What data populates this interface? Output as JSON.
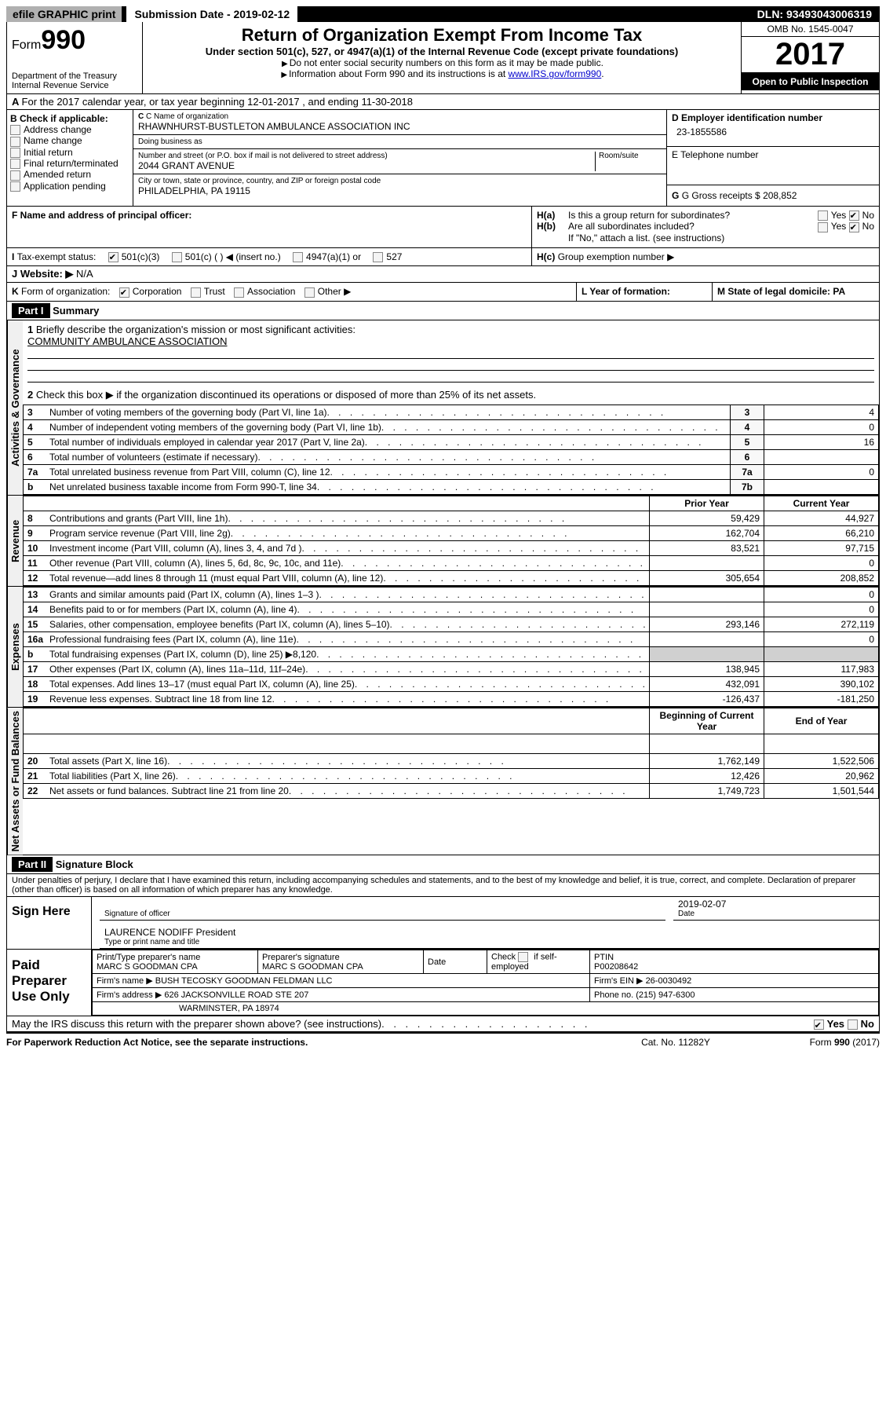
{
  "topbar": {
    "efile": "efile GRAPHIC print",
    "submission_label": "Submission Date - 2019-02-12",
    "dln": "DLN: 93493043006319"
  },
  "header": {
    "form_prefix": "Form",
    "form_no": "990",
    "dept": "Department of the Treasury",
    "irs": "Internal Revenue Service",
    "title": "Return of Organization Exempt From Income Tax",
    "sub": "Under section 501(c), 527, or 4947(a)(1) of the Internal Revenue Code (except private foundations)",
    "note1": "Do not enter social security numbers on this form as it may be made public.",
    "note2_pre": "Information about Form 990 and its instructions is at ",
    "note2_link": "www.IRS.gov/form990",
    "omb": "OMB No. 1545-0047",
    "year": "2017",
    "open": "Open to Public Inspection"
  },
  "section_a": "For the 2017 calendar year, or tax year beginning 12-01-2017   , and ending 11-30-2018",
  "col_b": {
    "header": "B Check if applicable:",
    "items": [
      "Address change",
      "Name change",
      "Initial return",
      "Final return/terminated",
      "Amended return",
      "Application pending"
    ]
  },
  "col_c": {
    "name_label": "C Name of organization",
    "name": "RHAWNHURST-BUSTLETON AMBULANCE ASSOCIATION INC",
    "dba_label": "Doing business as",
    "dba": "",
    "street_label": "Number and street (or P.O. box if mail is not delivered to street address)",
    "room_label": "Room/suite",
    "street": "2044 GRANT AVENUE",
    "city_label": "City or town, state or province, country, and ZIP or foreign postal code",
    "city": "PHILADELPHIA, PA  19115"
  },
  "col_d": {
    "ein_label": "D Employer identification number",
    "ein": "23-1855586",
    "phone_label": "E Telephone number",
    "phone": "",
    "gross_label": "G Gross receipts $ ",
    "gross": "208,852"
  },
  "f_label": "F  Name and address of principal officer:",
  "h": {
    "ha": "Is this a group return for subordinates?",
    "hb": "Are all subordinates included?",
    "hb_note": "If \"No,\" attach a list. (see instructions)",
    "hc": "Group exemption number ▶",
    "yes": "Yes",
    "no": "No"
  },
  "tax_exempt": {
    "label": "Tax-exempt status:",
    "opt1": "501(c)(3)",
    "opt2": "501(c) (   ) ◀ (insert no.)",
    "opt3": "4947(a)(1) or",
    "opt4": "527"
  },
  "website": {
    "label": "Website: ▶",
    "value": "N/A"
  },
  "k_form": {
    "label": "Form of organization:",
    "opts": [
      "Corporation",
      "Trust",
      "Association",
      "Other ▶"
    ]
  },
  "l_year": "L Year of formation:",
  "m_state": "M State of legal domicile: PA",
  "parts": {
    "p1": "Part I",
    "p1_title": "Summary",
    "p2": "Part II",
    "p2_title": "Signature Block"
  },
  "tabs": {
    "gov": "Activities & Governance",
    "rev": "Revenue",
    "exp": "Expenses",
    "net": "Net Assets or Fund Balances"
  },
  "p1": {
    "l1": "Briefly describe the organization's mission or most significant activities:",
    "l1_val": "COMMUNITY AMBULANCE ASSOCIATION",
    "l2": "Check this box ▶       if the organization discontinued its operations or disposed of more than 25% of its net assets.",
    "lines": [
      {
        "n": "3",
        "t": "Number of voting members of the governing body (Part VI, line 1a)",
        "k": "3",
        "v": "4"
      },
      {
        "n": "4",
        "t": "Number of independent voting members of the governing body (Part VI, line 1b)",
        "k": "4",
        "v": "0"
      },
      {
        "n": "5",
        "t": "Total number of individuals employed in calendar year 2017 (Part V, line 2a)",
        "k": "5",
        "v": "16"
      },
      {
        "n": "6",
        "t": "Total number of volunteers (estimate if necessary)",
        "k": "6",
        "v": ""
      },
      {
        "n": "7a",
        "t": "Total unrelated business revenue from Part VIII, column (C), line 12",
        "k": "7a",
        "v": "0"
      },
      {
        "n": "b",
        "t": "Net unrelated business taxable income from Form 990-T, line 34",
        "k": "7b",
        "v": ""
      }
    ],
    "col_prior": "Prior Year",
    "col_current": "Current Year",
    "revenue": [
      {
        "n": "8",
        "t": "Contributions and grants (Part VIII, line 1h)",
        "p": "59,429",
        "c": "44,927"
      },
      {
        "n": "9",
        "t": "Program service revenue (Part VIII, line 2g)",
        "p": "162,704",
        "c": "66,210"
      },
      {
        "n": "10",
        "t": "Investment income (Part VIII, column (A), lines 3, 4, and 7d )",
        "p": "83,521",
        "c": "97,715"
      },
      {
        "n": "11",
        "t": "Other revenue (Part VIII, column (A), lines 5, 6d, 8c, 9c, 10c, and 11e)",
        "p": "",
        "c": "0"
      },
      {
        "n": "12",
        "t": "Total revenue—add lines 8 through 11 (must equal Part VIII, column (A), line 12)",
        "p": "305,654",
        "c": "208,852"
      }
    ],
    "expenses": [
      {
        "n": "13",
        "t": "Grants and similar amounts paid (Part IX, column (A), lines 1–3 )",
        "p": "",
        "c": "0"
      },
      {
        "n": "14",
        "t": "Benefits paid to or for members (Part IX, column (A), line 4)",
        "p": "",
        "c": "0"
      },
      {
        "n": "15",
        "t": "Salaries, other compensation, employee benefits (Part IX, column (A), lines 5–10)",
        "p": "293,146",
        "c": "272,119"
      },
      {
        "n": "16a",
        "t": "Professional fundraising fees (Part IX, column (A), line 11e)",
        "p": "",
        "c": "0"
      },
      {
        "n": "b",
        "t": "Total fundraising expenses (Part IX, column (D), line 25) ▶8,120",
        "p": "shade",
        "c": "shade"
      },
      {
        "n": "17",
        "t": "Other expenses (Part IX, column (A), lines 11a–11d, 11f–24e)",
        "p": "138,945",
        "c": "117,983"
      },
      {
        "n": "18",
        "t": "Total expenses. Add lines 13–17 (must equal Part IX, column (A), line 25)",
        "p": "432,091",
        "c": "390,102"
      },
      {
        "n": "19",
        "t": "Revenue less expenses. Subtract line 18 from line 12",
        "p": "-126,437",
        "c": "-181,250"
      }
    ],
    "col_begin": "Beginning of Current Year",
    "col_end": "End of Year",
    "net": [
      {
        "n": "20",
        "t": "Total assets (Part X, line 16)",
        "p": "1,762,149",
        "c": "1,522,506"
      },
      {
        "n": "21",
        "t": "Total liabilities (Part X, line 26)",
        "p": "12,426",
        "c": "20,962"
      },
      {
        "n": "22",
        "t": "Net assets or fund balances. Subtract line 21 from line 20",
        "p": "1,749,723",
        "c": "1,501,544"
      }
    ]
  },
  "sig": {
    "perjury": "Under penalties of perjury, I declare that I have examined this return, including accompanying schedules and statements, and to the best of my knowledge and belief, it is true, correct, and complete. Declaration of preparer (other than officer) is based on all information of which preparer has any knowledge.",
    "sign_here": "Sign Here",
    "sig_officer": "Signature of officer",
    "date": "Date",
    "sig_date": "2019-02-07",
    "name_title": "LAURENCE NODIFF President",
    "name_title_label": "Type or print name and title",
    "paid": "Paid Preparer Use Only",
    "prep_name_label": "Print/Type preparer's name",
    "prep_name": "MARC S GOODMAN CPA",
    "prep_sig_label": "Preparer's signature",
    "prep_sig": "MARC S GOODMAN CPA",
    "prep_date_label": "Date",
    "self_emp": "Check        if self-employed",
    "ptin_label": "PTIN",
    "ptin": "P00208642",
    "firm_name_label": "Firm's name    ▶",
    "firm_name": "BUSH TECOSKY GOODMAN FELDMAN LLC",
    "firm_ein_label": "Firm's EIN ▶",
    "firm_ein": "26-0030492",
    "firm_addr_label": "Firm's address ▶",
    "firm_addr1": "626 JACKSONVILLE ROAD STE 207",
    "firm_addr2": "WARMINSTER, PA  18974",
    "phone_label": "Phone no.",
    "phone": "(215) 947-6300",
    "discuss": "May the IRS discuss this return with the preparer shown above? (see instructions)"
  },
  "footer": {
    "left": "For Paperwork Reduction Act Notice, see the separate instructions.",
    "mid": "Cat. No. 11282Y",
    "right": "Form 990 (2017)"
  }
}
